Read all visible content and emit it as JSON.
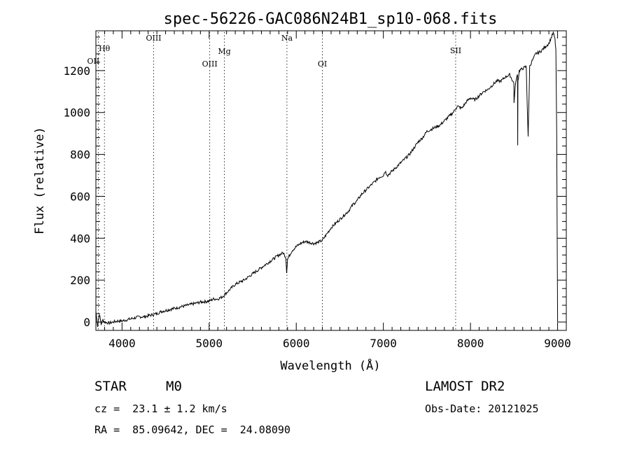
{
  "chart_data": {
    "type": "line",
    "title": "spec-56226-GAC086N24B1_sp10-068.fits",
    "xlabel": "Wavelength (Å)",
    "ylabel": "Flux (relative)",
    "xlim": [
      3700,
      9100
    ],
    "ylim": [
      -40,
      1390
    ],
    "xticks": [
      4000,
      5000,
      6000,
      7000,
      8000,
      9000
    ],
    "yticks": [
      0,
      200,
      400,
      600,
      800,
      1000,
      1200
    ],
    "grid": false,
    "line_color": "#000000",
    "series": [
      {
        "x": [
          3700,
          3720,
          3740,
          3760,
          3780,
          3800,
          3850,
          3900,
          3950,
          4000,
          4050,
          4100,
          4150,
          4200,
          4250,
          4300,
          4350,
          4400,
          4450,
          4500,
          4600,
          4700,
          4800,
          4900,
          5000,
          5050,
          5100,
          5150,
          5200,
          5250,
          5300,
          5400,
          5500,
          5600,
          5700,
          5800,
          5850,
          5880,
          5890,
          5900,
          5950,
          6000,
          6050,
          6100,
          6150,
          6200,
          6250,
          6300,
          6350,
          6400,
          6450,
          6500,
          6550,
          6600,
          6650,
          6700,
          6750,
          6800,
          6850,
          6900,
          6950,
          7000,
          7020,
          7050,
          7100,
          7150,
          7200,
          7250,
          7300,
          7350,
          7400,
          7450,
          7500,
          7550,
          7600,
          7650,
          7700,
          7750,
          7800,
          7850,
          7900,
          7950,
          8000,
          8050,
          8100,
          8150,
          8200,
          8250,
          8300,
          8350,
          8400,
          8450,
          8498,
          8500,
          8520,
          8540,
          8542,
          8545,
          8560,
          8600,
          8640,
          8662,
          8680,
          8700,
          8750,
          8800,
          8850,
          8900,
          8950,
          8970,
          8980,
          8990,
          9000
        ],
        "y": [
          50,
          -20,
          40,
          -10,
          10,
          0,
          -5,
          0,
          5,
          5,
          10,
          15,
          20,
          25,
          25,
          30,
          35,
          40,
          50,
          55,
          65,
          75,
          85,
          95,
          100,
          110,
          110,
          120,
          140,
          160,
          180,
          200,
          230,
          260,
          290,
          320,
          330,
          310,
          240,
          300,
          340,
          360,
          375,
          385,
          380,
          375,
          380,
          390,
          420,
          450,
          470,
          490,
          510,
          530,
          560,
          580,
          610,
          630,
          650,
          670,
          690,
          700,
          720,
          700,
          720,
          740,
          760,
          780,
          800,
          830,
          860,
          880,
          910,
          920,
          930,
          940,
          960,
          980,
          1000,
          1030,
          1020,
          1050,
          1070,
          1060,
          1080,
          1100,
          1110,
          1130,
          1150,
          1150,
          1170,
          1180,
          1140,
          1050,
          1150,
          1180,
          850,
          1150,
          1200,
          1210,
          1220,
          880,
          1220,
          1240,
          1280,
          1290,
          1310,
          1330,
          1380,
          1350,
          1300,
          900,
          0
        ]
      }
    ],
    "lines": [
      {
        "label": "Hθ",
        "x": 3798
      },
      {
        "label": "OII",
        "x": 3727
      },
      {
        "label": "OIII",
        "x": 4363
      },
      {
        "label": "OIII",
        "x": 5007
      },
      {
        "label": "Mg",
        "x": 5175
      },
      {
        "label": "Na",
        "x": 5893
      },
      {
        "label": "OI",
        "x": 6300
      },
      {
        "label": "SII",
        "x": 7830
      }
    ]
  },
  "info": {
    "object_class": "STAR",
    "subclass": "M0",
    "survey": "LAMOST DR2",
    "redshift": "cz =  23.1 ± 1.2 km/s",
    "obs_date": "Obs-Date: 20121025",
    "coords": "RA =  85.09642, DEC =  24.08090"
  }
}
